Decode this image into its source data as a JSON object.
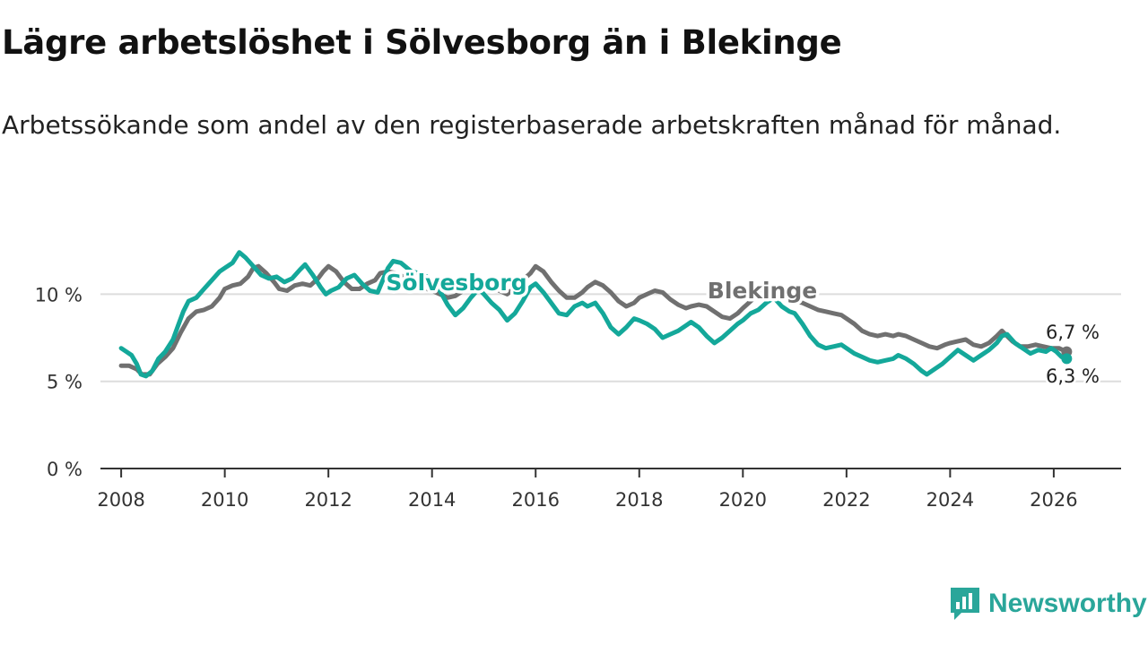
{
  "header": {
    "title": "Lägre arbetslöshet i Sölvesborg än i Blekinge",
    "subtitle": "Arbetssökande som andel av den registerbaserade arbetskraften månad för månad."
  },
  "logo": {
    "text": "Newsworthy",
    "icon": "bar-chart-speech-icon"
  },
  "colors": {
    "solvesborg": "#14a89a",
    "blekinge": "#707070",
    "grid": "#dddddd",
    "axis": "#333333"
  },
  "chart_data": {
    "type": "line",
    "title": "Lägre arbetslöshet i Sölvesborg än i Blekinge",
    "xlabel": "",
    "ylabel": "",
    "xlim": [
      2007.6,
      2027.3
    ],
    "ylim": [
      0,
      13
    ],
    "yticks": [
      0,
      5,
      10
    ],
    "ytick_labels": [
      "0 %",
      "5 %",
      "10 %"
    ],
    "xticks": [
      2008,
      2010,
      2012,
      2014,
      2016,
      2018,
      2020,
      2022,
      2024,
      2026
    ],
    "xtick_labels": [
      "2008",
      "2010",
      "2012",
      "2014",
      "2016",
      "2018",
      "2020",
      "2022",
      "2024",
      "2026"
    ],
    "grid": true,
    "series": [
      {
        "name": "Blekinge",
        "label": "Blekinge",
        "end_label": "6,7 %",
        "points": [
          [
            2008.0,
            5.9
          ],
          [
            2008.15,
            5.9
          ],
          [
            2008.3,
            5.7
          ],
          [
            2008.4,
            5.4
          ],
          [
            2008.55,
            5.4
          ],
          [
            2008.7,
            6.0
          ],
          [
            2008.85,
            6.4
          ],
          [
            2009.0,
            6.9
          ],
          [
            2009.15,
            7.8
          ],
          [
            2009.3,
            8.6
          ],
          [
            2009.45,
            9.0
          ],
          [
            2009.6,
            9.1
          ],
          [
            2009.75,
            9.3
          ],
          [
            2009.9,
            9.8
          ],
          [
            2010.0,
            10.3
          ],
          [
            2010.15,
            10.5
          ],
          [
            2010.3,
            10.6
          ],
          [
            2010.45,
            11.0
          ],
          [
            2010.55,
            11.5
          ],
          [
            2010.65,
            11.6
          ],
          [
            2010.8,
            11.2
          ],
          [
            2010.95,
            10.7
          ],
          [
            2011.05,
            10.3
          ],
          [
            2011.2,
            10.2
          ],
          [
            2011.35,
            10.5
          ],
          [
            2011.5,
            10.6
          ],
          [
            2011.65,
            10.5
          ],
          [
            2011.8,
            10.9
          ],
          [
            2011.9,
            11.3
          ],
          [
            2012.0,
            11.6
          ],
          [
            2012.15,
            11.3
          ],
          [
            2012.3,
            10.7
          ],
          [
            2012.45,
            10.3
          ],
          [
            2012.6,
            10.3
          ],
          [
            2012.75,
            10.6
          ],
          [
            2012.9,
            10.8
          ],
          [
            2013.0,
            11.2
          ],
          [
            2013.15,
            11.3
          ],
          [
            2013.3,
            11.2
          ],
          [
            2013.45,
            11.0
          ],
          [
            2013.6,
            10.7
          ],
          [
            2013.75,
            10.4
          ],
          [
            2013.9,
            10.3
          ],
          [
            2014.0,
            10.2
          ],
          [
            2014.15,
            10.0
          ],
          [
            2014.3,
            9.8
          ],
          [
            2014.45,
            9.9
          ],
          [
            2014.6,
            10.2
          ],
          [
            2014.75,
            10.7
          ],
          [
            2014.9,
            10.9
          ],
          [
            2015.0,
            10.7
          ],
          [
            2015.15,
            10.4
          ],
          [
            2015.3,
            10.2
          ],
          [
            2015.45,
            10.0
          ],
          [
            2015.6,
            10.4
          ],
          [
            2015.75,
            10.8
          ],
          [
            2015.9,
            11.2
          ],
          [
            2016.0,
            11.6
          ],
          [
            2016.15,
            11.3
          ],
          [
            2016.3,
            10.7
          ],
          [
            2016.45,
            10.2
          ],
          [
            2016.6,
            9.8
          ],
          [
            2016.75,
            9.8
          ],
          [
            2016.9,
            10.1
          ],
          [
            2017.0,
            10.4
          ],
          [
            2017.15,
            10.7
          ],
          [
            2017.3,
            10.5
          ],
          [
            2017.45,
            10.1
          ],
          [
            2017.6,
            9.6
          ],
          [
            2017.75,
            9.3
          ],
          [
            2017.9,
            9.5
          ],
          [
            2018.0,
            9.8
          ],
          [
            2018.15,
            10.0
          ],
          [
            2018.3,
            10.2
          ],
          [
            2018.45,
            10.1
          ],
          [
            2018.6,
            9.7
          ],
          [
            2018.75,
            9.4
          ],
          [
            2018.9,
            9.2
          ],
          [
            2019.0,
            9.3
          ],
          [
            2019.15,
            9.4
          ],
          [
            2019.3,
            9.3
          ],
          [
            2019.45,
            9.0
          ],
          [
            2019.6,
            8.7
          ],
          [
            2019.75,
            8.6
          ],
          [
            2019.9,
            8.9
          ],
          [
            2020.0,
            9.2
          ],
          [
            2020.15,
            9.6
          ],
          [
            2020.3,
            10.0
          ],
          [
            2020.45,
            10.4
          ],
          [
            2020.6,
            10.5
          ],
          [
            2020.75,
            10.2
          ],
          [
            2020.9,
            9.8
          ],
          [
            2021.0,
            9.6
          ],
          [
            2021.15,
            9.5
          ],
          [
            2021.3,
            9.3
          ],
          [
            2021.45,
            9.1
          ],
          [
            2021.6,
            9.0
          ],
          [
            2021.75,
            8.9
          ],
          [
            2021.9,
            8.8
          ],
          [
            2022.0,
            8.6
          ],
          [
            2022.15,
            8.3
          ],
          [
            2022.3,
            7.9
          ],
          [
            2022.45,
            7.7
          ],
          [
            2022.6,
            7.6
          ],
          [
            2022.75,
            7.7
          ],
          [
            2022.9,
            7.6
          ],
          [
            2023.0,
            7.7
          ],
          [
            2023.15,
            7.6
          ],
          [
            2023.3,
            7.4
          ],
          [
            2023.45,
            7.2
          ],
          [
            2023.6,
            7.0
          ],
          [
            2023.75,
            6.9
          ],
          [
            2023.9,
            7.1
          ],
          [
            2024.0,
            7.2
          ],
          [
            2024.15,
            7.3
          ],
          [
            2024.3,
            7.4
          ],
          [
            2024.45,
            7.1
          ],
          [
            2024.6,
            7.0
          ],
          [
            2024.75,
            7.2
          ],
          [
            2024.9,
            7.6
          ],
          [
            2025.0,
            7.9
          ],
          [
            2025.1,
            7.6
          ],
          [
            2025.2,
            7.3
          ],
          [
            2025.35,
            7.0
          ],
          [
            2025.5,
            7.0
          ],
          [
            2025.65,
            7.1
          ],
          [
            2025.8,
            7.0
          ],
          [
            2025.95,
            6.9
          ],
          [
            2026.1,
            6.9
          ],
          [
            2026.25,
            6.7
          ]
        ]
      },
      {
        "name": "Sölvesborg",
        "label": "Sölvesborg",
        "end_label": "6,3 %",
        "points": [
          [
            2008.0,
            6.9
          ],
          [
            2008.1,
            6.7
          ],
          [
            2008.2,
            6.5
          ],
          [
            2008.3,
            6.0
          ],
          [
            2008.38,
            5.4
          ],
          [
            2008.48,
            5.3
          ],
          [
            2008.6,
            5.6
          ],
          [
            2008.72,
            6.3
          ],
          [
            2008.85,
            6.7
          ],
          [
            2009.0,
            7.4
          ],
          [
            2009.1,
            8.2
          ],
          [
            2009.2,
            9.0
          ],
          [
            2009.3,
            9.6
          ],
          [
            2009.45,
            9.8
          ],
          [
            2009.6,
            10.3
          ],
          [
            2009.75,
            10.8
          ],
          [
            2009.9,
            11.3
          ],
          [
            2010.0,
            11.5
          ],
          [
            2010.15,
            11.8
          ],
          [
            2010.28,
            12.4
          ],
          [
            2010.4,
            12.1
          ],
          [
            2010.55,
            11.6
          ],
          [
            2010.7,
            11.1
          ],
          [
            2010.85,
            10.9
          ],
          [
            2011.0,
            11.0
          ],
          [
            2011.15,
            10.7
          ],
          [
            2011.3,
            10.9
          ],
          [
            2011.45,
            11.4
          ],
          [
            2011.55,
            11.7
          ],
          [
            2011.7,
            11.1
          ],
          [
            2011.85,
            10.4
          ],
          [
            2011.95,
            10.0
          ],
          [
            2012.05,
            10.2
          ],
          [
            2012.2,
            10.4
          ],
          [
            2012.35,
            10.9
          ],
          [
            2012.5,
            11.1
          ],
          [
            2012.65,
            10.6
          ],
          [
            2012.8,
            10.2
          ],
          [
            2012.95,
            10.1
          ],
          [
            2013.05,
            10.8
          ],
          [
            2013.15,
            11.5
          ],
          [
            2013.25,
            11.9
          ],
          [
            2013.4,
            11.8
          ],
          [
            2013.6,
            11.3
          ],
          [
            2013.75,
            11.2
          ],
          [
            2013.9,
            11.0
          ],
          [
            2014.0,
            10.6
          ],
          [
            2014.15,
            10.2
          ],
          [
            2014.3,
            9.4
          ],
          [
            2014.45,
            8.8
          ],
          [
            2014.6,
            9.2
          ],
          [
            2014.75,
            9.8
          ],
          [
            2014.9,
            10.3
          ],
          [
            2015.0,
            10.0
          ],
          [
            2015.15,
            9.5
          ],
          [
            2015.3,
            9.1
          ],
          [
            2015.45,
            8.5
          ],
          [
            2015.6,
            8.9
          ],
          [
            2015.75,
            9.6
          ],
          [
            2015.9,
            10.4
          ],
          [
            2016.0,
            10.6
          ],
          [
            2016.15,
            10.1
          ],
          [
            2016.3,
            9.5
          ],
          [
            2016.45,
            8.9
          ],
          [
            2016.6,
            8.8
          ],
          [
            2016.75,
            9.3
          ],
          [
            2016.9,
            9.5
          ],
          [
            2017.0,
            9.3
          ],
          [
            2017.15,
            9.5
          ],
          [
            2017.3,
            8.9
          ],
          [
            2017.45,
            8.1
          ],
          [
            2017.6,
            7.7
          ],
          [
            2017.75,
            8.1
          ],
          [
            2017.9,
            8.6
          ],
          [
            2018.0,
            8.5
          ],
          [
            2018.15,
            8.3
          ],
          [
            2018.3,
            8.0
          ],
          [
            2018.45,
            7.5
          ],
          [
            2018.6,
            7.7
          ],
          [
            2018.75,
            7.9
          ],
          [
            2018.9,
            8.2
          ],
          [
            2019.0,
            8.4
          ],
          [
            2019.15,
            8.1
          ],
          [
            2019.3,
            7.6
          ],
          [
            2019.45,
            7.2
          ],
          [
            2019.6,
            7.5
          ],
          [
            2019.75,
            7.9
          ],
          [
            2019.9,
            8.3
          ],
          [
            2020.0,
            8.5
          ],
          [
            2020.15,
            8.9
          ],
          [
            2020.3,
            9.1
          ],
          [
            2020.45,
            9.5
          ],
          [
            2020.6,
            9.8
          ],
          [
            2020.75,
            9.3
          ],
          [
            2020.9,
            9.0
          ],
          [
            2021.0,
            8.9
          ],
          [
            2021.15,
            8.3
          ],
          [
            2021.3,
            7.6
          ],
          [
            2021.45,
            7.1
          ],
          [
            2021.6,
            6.9
          ],
          [
            2021.75,
            7.0
          ],
          [
            2021.9,
            7.1
          ],
          [
            2022.0,
            6.9
          ],
          [
            2022.15,
            6.6
          ],
          [
            2022.3,
            6.4
          ],
          [
            2022.45,
            6.2
          ],
          [
            2022.6,
            6.1
          ],
          [
            2022.75,
            6.2
          ],
          [
            2022.9,
            6.3
          ],
          [
            2023.0,
            6.5
          ],
          [
            2023.15,
            6.3
          ],
          [
            2023.3,
            6.0
          ],
          [
            2023.45,
            5.6
          ],
          [
            2023.55,
            5.4
          ],
          [
            2023.7,
            5.7
          ],
          [
            2023.85,
            6.0
          ],
          [
            2024.0,
            6.4
          ],
          [
            2024.15,
            6.8
          ],
          [
            2024.3,
            6.5
          ],
          [
            2024.45,
            6.2
          ],
          [
            2024.6,
            6.5
          ],
          [
            2024.75,
            6.8
          ],
          [
            2024.9,
            7.2
          ],
          [
            2025.0,
            7.6
          ],
          [
            2025.1,
            7.7
          ],
          [
            2025.25,
            7.2
          ],
          [
            2025.4,
            6.9
          ],
          [
            2025.55,
            6.6
          ],
          [
            2025.7,
            6.8
          ],
          [
            2025.85,
            6.7
          ],
          [
            2025.95,
            6.9
          ],
          [
            2026.05,
            6.7
          ],
          [
            2026.15,
            6.4
          ],
          [
            2026.25,
            6.3
          ]
        ]
      }
    ]
  }
}
